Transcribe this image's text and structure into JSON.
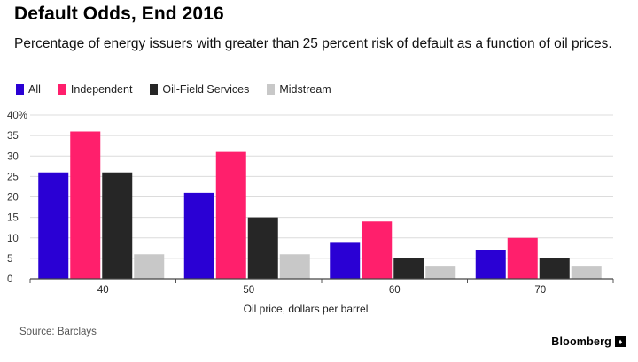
{
  "header": {
    "title": "Default Odds, End 2016",
    "subtitle": "Percentage of energy issuers with greater than 25 percent risk of default as a function of oil prices."
  },
  "footer": {
    "source": "Source: Barclays",
    "brand": "Bloomberg",
    "brand_mark_glyph": "♦"
  },
  "chart_data": {
    "type": "bar",
    "title": "Default Odds, End 2016",
    "subtitle": "Percentage of energy issuers with greater than 25 percent risk of default as a function of oil prices.",
    "xlabel": "Oil price, dollars per barrel",
    "ylabel": "",
    "categories": [
      "40",
      "50",
      "60",
      "70"
    ],
    "ylim": [
      0,
      40
    ],
    "yticks": [
      "0",
      "5",
      "10",
      "15",
      "20",
      "25",
      "30",
      "35",
      "40%"
    ],
    "grid": true,
    "legend_position": "top-left",
    "series": [
      {
        "name": "All",
        "color": "#2a00d4",
        "values": [
          26,
          21,
          9,
          7
        ]
      },
      {
        "name": "Independent",
        "color": "#ff1f6c",
        "values": [
          36,
          31,
          14,
          10
        ]
      },
      {
        "name": "Oil-Field Services",
        "color": "#262626",
        "values": [
          26,
          15,
          5,
          5
        ]
      },
      {
        "name": "Midstream",
        "color": "#c8c8c8",
        "values": [
          6,
          6,
          3,
          3
        ]
      }
    ]
  }
}
